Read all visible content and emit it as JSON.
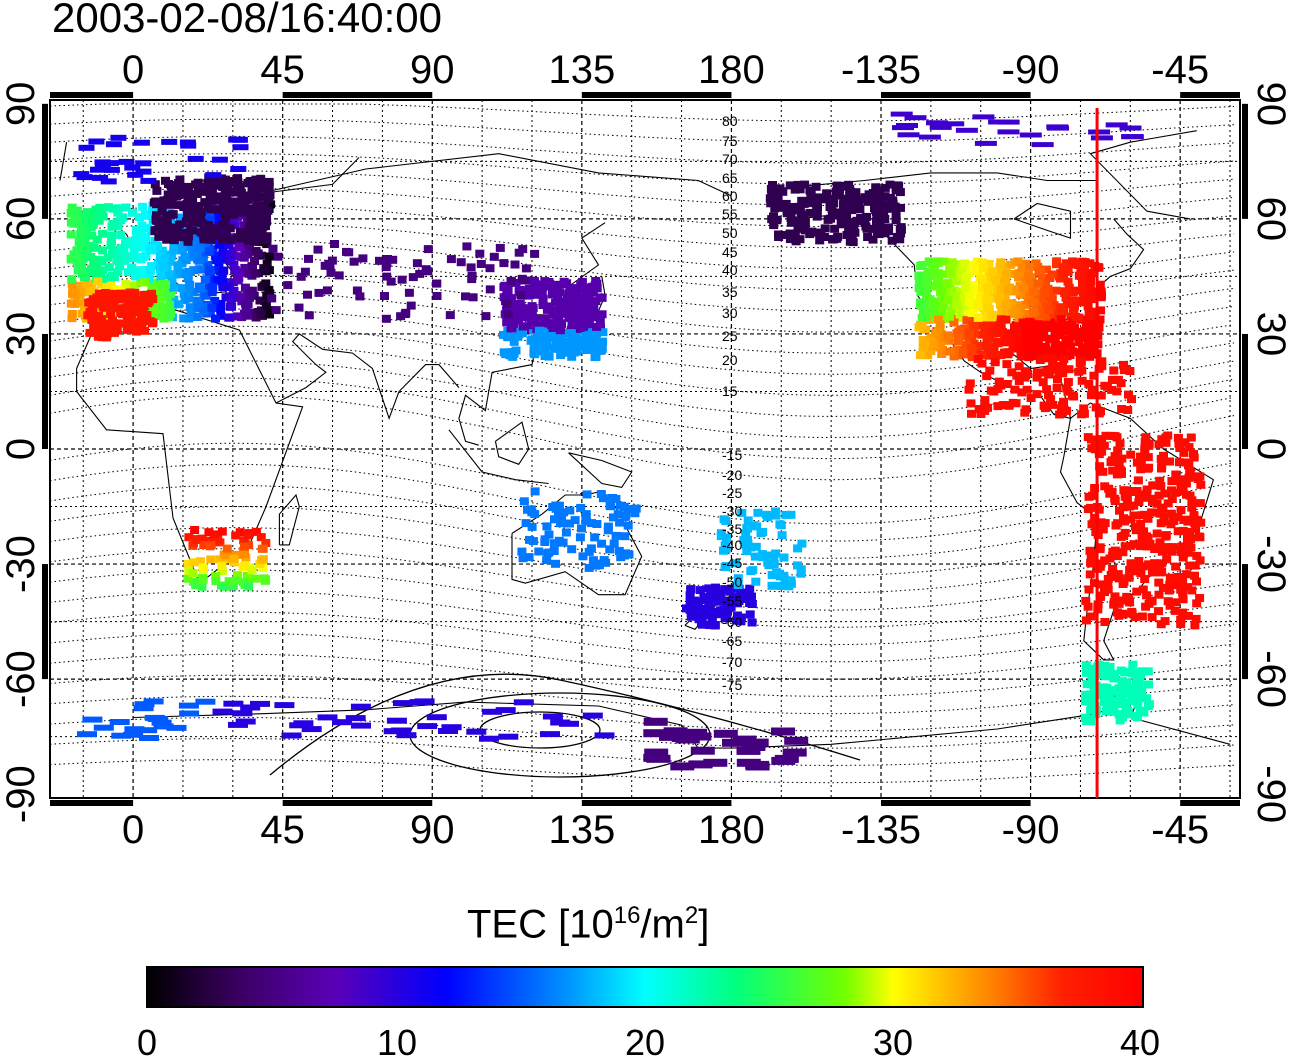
{
  "title": "2003-02-08/16:40:00",
  "map": {
    "x_ticks": [
      "0",
      "45",
      "90",
      "135",
      "180",
      "-135",
      "-90",
      "-45"
    ],
    "y_ticks": [
      "90",
      "60",
      "30",
      "0",
      "-30",
      "-60",
      "-90"
    ],
    "magnetic_latitude_labels": [
      "80",
      "75",
      "70",
      "65",
      "60",
      "55",
      "50",
      "45",
      "40",
      "35",
      "30",
      "25",
      "20",
      "15",
      "-15",
      "-20",
      "-25",
      "-30",
      "-35",
      "-40",
      "-45",
      "-50",
      "-55",
      "-60",
      "-65",
      "-70",
      "-75"
    ],
    "terminator_longitude": -70,
    "terminator_color": "#ff0000"
  },
  "colorbar": {
    "title_prefix": "TEC  [10",
    "title_exp1": "16",
    "title_mid": "/m",
    "title_exp2": "2",
    "title_suffix": "]",
    "ticks": [
      "0",
      "10",
      "20",
      "30",
      "40"
    ],
    "range": [
      0,
      40
    ],
    "colors": [
      "#000000",
      "#5a00b8",
      "#0000ff",
      "#00ffff",
      "#00ff80",
      "#ffff00",
      "#ff8000",
      "#ff0000"
    ]
  }
}
